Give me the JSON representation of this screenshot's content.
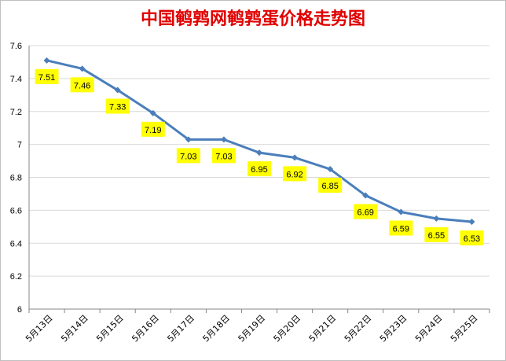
{
  "chart_data": {
    "type": "line",
    "title": "中国鹌鹑网鹌鹑蛋价格走势图",
    "categories": [
      "5月13日",
      "5月14日",
      "5月15日",
      "5月16日",
      "5月17日",
      "5月18日",
      "5月19日",
      "5月20日",
      "5月21日",
      "5月22日",
      "5月23日",
      "5月24日",
      "5月25日"
    ],
    "values": [
      7.51,
      7.46,
      7.33,
      7.19,
      7.03,
      7.03,
      6.95,
      6.92,
      6.85,
      6.69,
      6.59,
      6.55,
      6.53
    ],
    "data_labels": [
      "7.51",
      "7.46",
      "7.33",
      "7.19",
      "7.03",
      "7.03",
      "6.95",
      "6.92",
      "6.85",
      "6.69",
      "6.59",
      "6.55",
      "6.53"
    ],
    "ylim": [
      6,
      7.6
    ],
    "yticks": [
      "6",
      "6.2",
      "6.4",
      "6.6",
      "6.8",
      "7",
      "7.2",
      "7.4",
      "7.6"
    ],
    "grid": true,
    "xlabel": "",
    "ylabel": "",
    "colors": {
      "title": "#e00000",
      "line": "#4a7ebb",
      "label_bg": "#ffff00",
      "grid": "#d9d9d9",
      "axis": "#868686"
    }
  }
}
